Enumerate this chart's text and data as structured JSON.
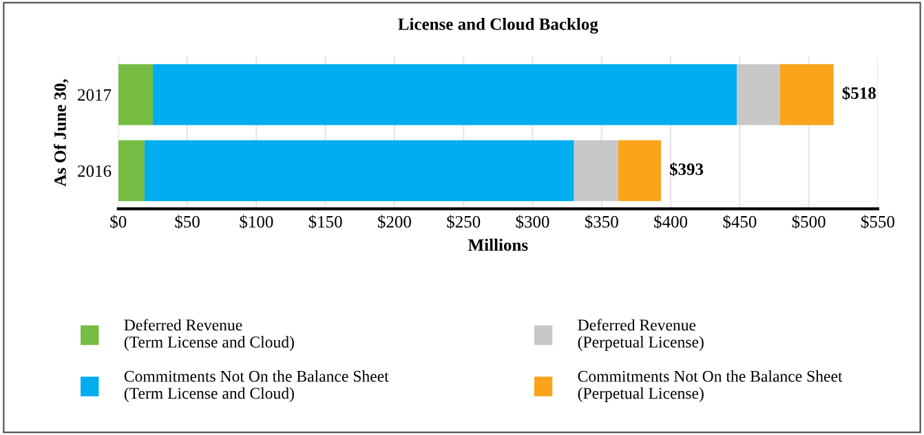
{
  "chart_data": {
    "type": "bar",
    "orientation": "horizontal",
    "stacked": true,
    "title": "License and Cloud Backlog",
    "xlabel": "Millions",
    "ylabel": "As Of June 30,",
    "categories": [
      "2017",
      "2016"
    ],
    "series": [
      {
        "name": "Deferred Revenue\n(Term License and Cloud)",
        "color": "#77bc43",
        "values": [
          25,
          19
        ]
      },
      {
        "name": "Commitments Not On the Balance Sheet\n(Term License and Cloud)",
        "color": "#00adef",
        "values": [
          423,
          311
        ]
      },
      {
        "name": "Deferred Revenue\n(Perpetual License)",
        "color": "#c8c8c8",
        "values": [
          31,
          32
        ]
      },
      {
        "name": "Commitments Not On the Balance Sheet\n(Perpetual License)",
        "color": "#fba31b",
        "values": [
          39,
          31
        ]
      }
    ],
    "totals": [
      "$518",
      "$393"
    ],
    "xlim": [
      0,
      550
    ],
    "xticks": [
      {
        "value": 0,
        "label": "$0"
      },
      {
        "value": 50,
        "label": "$50"
      },
      {
        "value": 100,
        "label": "$100"
      },
      {
        "value": 150,
        "label": "$150"
      },
      {
        "value": 200,
        "label": "$200"
      },
      {
        "value": 250,
        "label": "$250"
      },
      {
        "value": 300,
        "label": "$300"
      },
      {
        "value": 350,
        "label": "$350"
      },
      {
        "value": 400,
        "label": "$400"
      },
      {
        "value": 450,
        "label": "$450"
      },
      {
        "value": 500,
        "label": "$500"
      },
      {
        "value": 550,
        "label": "$550"
      }
    ],
    "grid": "x",
    "legend": "bottom"
  }
}
